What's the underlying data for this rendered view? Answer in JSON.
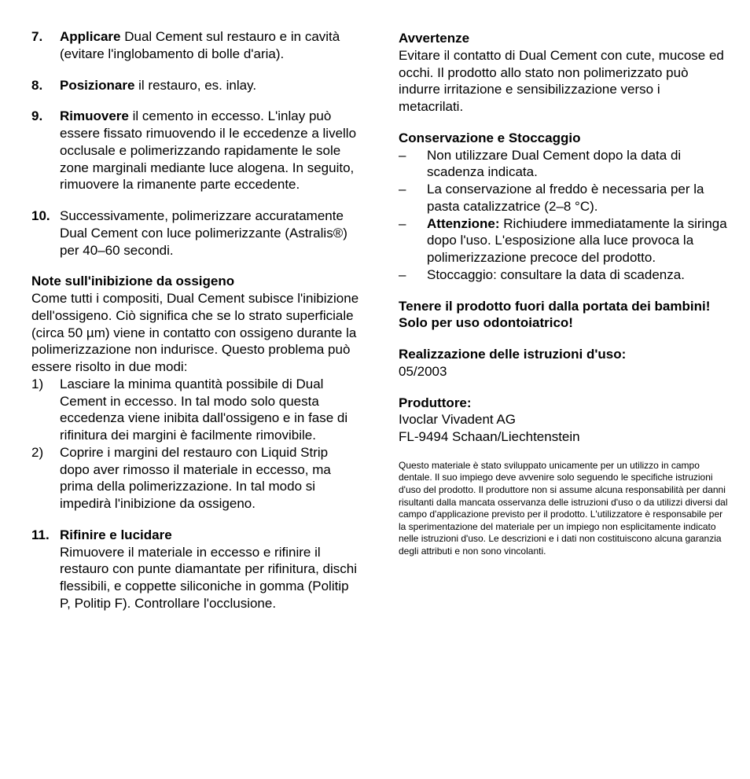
{
  "colors": {
    "text": "#000000",
    "background": "#ffffff"
  },
  "typography": {
    "body_fontsize_pt": 12,
    "fineprint_fontsize_pt": 8,
    "body_lineheight": 1.28,
    "bold_weight": 700
  },
  "left": {
    "steps": [
      {
        "num": "7.",
        "lead": "Applicare",
        "text": " Dual Cement sul restauro e in cavità (evitare l'inglobamento di bolle d'aria)."
      },
      {
        "num": "8.",
        "lead": "Posizionare",
        "text": " il restauro, es. inlay."
      },
      {
        "num": "9.",
        "lead": "Rimuovere",
        "text": " il cemento in eccesso. L'inlay può essere fissato rimuovendo il le eccedenze a livello occlusale e polimerizzando rapidamente le sole zone marginali mediante luce alogena. In seguito, rimuovere la rimanente parte eccedente."
      },
      {
        "num": "10.",
        "lead": "",
        "text": "Successivamente, polimerizzare accuratamente Dual Cement con luce polimerizzante (Astralis®) per 40–60 secondi."
      }
    ],
    "oxygen_head": "Note sull'inibizione da ossigeno",
    "oxygen_para": "Come tutti i compositi, Dual Cement subisce l'inibizione dell'ossigeno. Ciò significa che se lo strato superficiale (circa 50 µm) viene in contatto con ossigeno durante la polimerizzazione non indurisce. Questo problema può essere risolto in due modi:",
    "oxygen_items": [
      {
        "en": "1)",
        "text": "Lasciare la minima quantità possibile di Dual Cement in eccesso. In tal modo solo questa eccedenza viene inibita dall'ossigeno e in fase di rifinitura dei margini è facilmente rimovibile."
      },
      {
        "en": "2)",
        "text": "Coprire i margini del restauro con Liquid Strip dopo aver rimosso il materiale in eccesso, ma prima della polimerizzazione. In tal modo si impedirà l'inibizione da ossigeno."
      }
    ],
    "step11": {
      "num": "11.",
      "lead": "Rifinire e lucidare",
      "text": "Rimuovere il materiale in eccesso e rifinire il restauro con punte diamantate per rifinitura, dischi flessibili, e coppette siliconiche in gomma (Politip P, Politip F). Controllare l'occlusione."
    }
  },
  "right": {
    "warn_head": "Avvertenze",
    "warn_para": "Evitare il contatto di Dual Cement con cute, mucose ed occhi. Il prodotto allo stato non polimerizzato può indurre irritazione e sensibilizzazione verso i metacrilati.",
    "storage_head": "Conservazione e Stoccaggio",
    "storage_items": [
      {
        "bold": "",
        "text": "Non utilizzare Dual Cement dopo la data di scadenza indicata."
      },
      {
        "bold": "",
        "text": "La conservazione al freddo è necessaria per la pasta catalizzatrice (2–8 °C)."
      },
      {
        "bold": "Attenzione:",
        "text": " Richiudere immediatamente la siringa dopo l'uso. L'esposizione alla luce provoca la polimerizzazione precoce del prodotto."
      },
      {
        "bold": "",
        "text": "Stoccaggio: consultare la data di scadenza."
      }
    ],
    "keepaway1": "Tenere il prodotto fuori dalla portata dei bambini! Solo per uso odontoiatrico!",
    "instr_head": "Realizzazione delle istruzioni d'uso:",
    "instr_date": "05/2003",
    "manu_head": "Produttore:",
    "manu_line1": "Ivoclar Vivadent AG",
    "manu_line2": "FL-9494 Schaan/Liechtenstein",
    "fineprint": "Questo materiale è stato sviluppato unicamente per un utilizzo in campo dentale. Il suo impiego deve avvenire solo seguendo le specifiche istruzioni d'uso del prodotto. Il produttore non si assume alcuna responsabilità per danni risultanti dalla mancata osservanza delle istruzioni d'uso o da utilizzi diversi dal campo d'applicazione previsto per il prodotto. L'utilizzatore è responsabile per la sperimentazione del materiale per un impiego non esplicitamente indicato nelle istruzioni d'uso. Le descrizioni e i dati non costituiscono alcuna garanzia degli attributi e non sono vincolanti."
  }
}
